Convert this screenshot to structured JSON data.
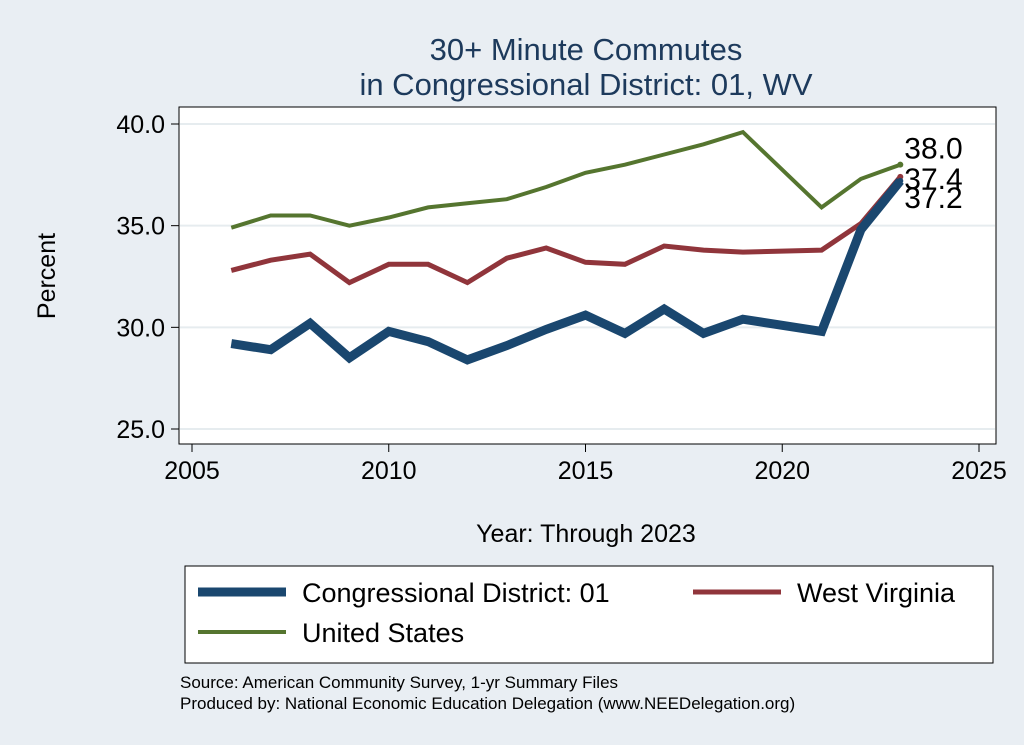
{
  "chart_data": {
    "type": "line",
    "title": [
      "30+ Minute Commutes",
      "in Congressional District:  01, WV"
    ],
    "xlabel": "Year: Through 2023",
    "ylabel": "Percent",
    "xlim": [
      2005,
      2025
    ],
    "ylim": [
      25,
      40
    ],
    "xticks": [
      2005,
      2010,
      2015,
      2020,
      2025
    ],
    "yticks": [
      25,
      30,
      35,
      40
    ],
    "ytick_labels": [
      "25.0",
      "30.0",
      "35.0",
      "40.0"
    ],
    "grid": "horizontal",
    "x": [
      2006,
      2007,
      2008,
      2009,
      2010,
      2011,
      2012,
      2013,
      2014,
      2015,
      2016,
      2017,
      2018,
      2019,
      2021,
      2022,
      2023
    ],
    "series": [
      {
        "name": "Congressional District:  01",
        "color": "#1a476f",
        "values": [
          29.2,
          28.9,
          30.2,
          28.5,
          29.8,
          29.3,
          28.4,
          29.1,
          29.9,
          30.6,
          29.7,
          30.9,
          29.7,
          30.4,
          29.8,
          34.8,
          37.2
        ],
        "end_label": "37.2"
      },
      {
        "name": "West Virginia",
        "color": "#90353b",
        "values": [
          32.8,
          33.3,
          33.6,
          32.2,
          33.1,
          33.1,
          32.2,
          33.4,
          33.9,
          33.2,
          33.1,
          34.0,
          33.8,
          33.7,
          33.8,
          35.1,
          37.4
        ],
        "end_label": "37.4"
      },
      {
        "name": "United States",
        "color": "#55752f",
        "values": [
          34.9,
          35.5,
          35.5,
          35.0,
          35.4,
          35.9,
          36.1,
          36.3,
          36.9,
          37.6,
          38.0,
          38.5,
          39.0,
          39.6,
          35.9,
          37.3,
          38.0
        ],
        "end_label": "38.0"
      }
    ],
    "legend": {
      "placement": "bottom",
      "entries": [
        "Congressional District:  01",
        "West Virginia",
        "United States"
      ]
    }
  },
  "notes": {
    "source": "Source: American Community Survey, 1-yr Summary Files",
    "producer": "Produced by: National Economic Education Delegation (www.NEEDelegation.org)"
  }
}
